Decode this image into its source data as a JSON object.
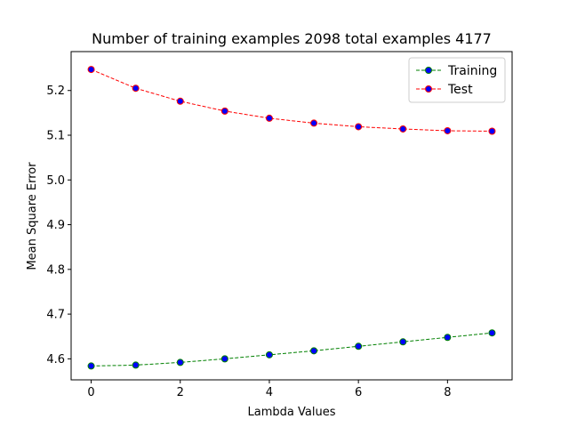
{
  "chart_data": {
    "type": "line",
    "title": "Number of training examples 2098 total examples 4177",
    "xlabel": "Lambda Values",
    "ylabel": "Mean Square Error",
    "xlim": [
      -0.45,
      9.45
    ],
    "ylim": [
      4.553,
      5.287
    ],
    "xticks": [
      0,
      2,
      4,
      6,
      8
    ],
    "xtick_labels": [
      "0",
      "2",
      "4",
      "6",
      "8"
    ],
    "yticks": [
      4.6,
      4.7,
      4.8,
      4.9,
      5.0,
      5.1,
      5.2
    ],
    "ytick_labels": [
      "4.6",
      "4.7",
      "4.8",
      "4.9",
      "5.0",
      "5.1",
      "5.2"
    ],
    "grid": false,
    "legend_position": "upper-right",
    "x": [
      0,
      1,
      2,
      3,
      4,
      5,
      6,
      7,
      8,
      9
    ],
    "series": [
      {
        "name": "Training",
        "values": [
          4.584,
          4.586,
          4.592,
          4.6,
          4.609,
          4.618,
          4.628,
          4.638,
          4.648,
          4.658
        ],
        "line_color": "#008000",
        "marker_face": "#0000ff",
        "marker_edge": "#008000"
      },
      {
        "name": "Test",
        "values": [
          5.247,
          5.205,
          5.176,
          5.154,
          5.138,
          5.127,
          5.119,
          5.114,
          5.11,
          5.109
        ],
        "line_color": "#ff0000",
        "marker_face": "#0000ff",
        "marker_edge": "#ff0000"
      }
    ]
  }
}
